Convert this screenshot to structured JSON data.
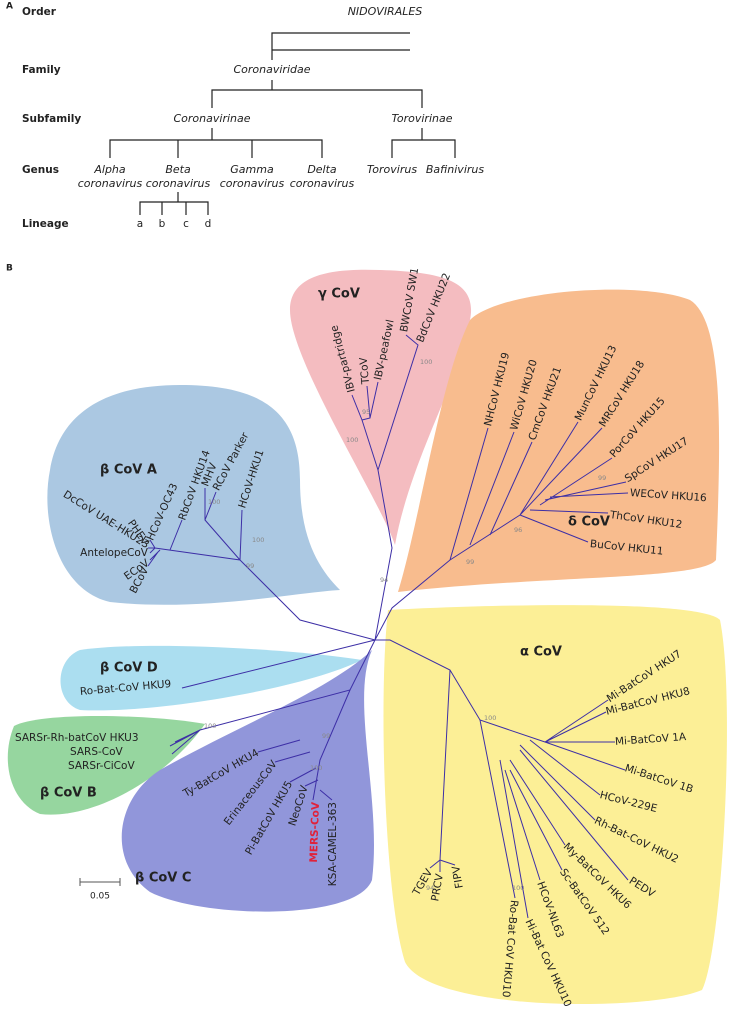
{
  "panel_a": {
    "label": "A",
    "ranks": [
      "Order",
      "Family",
      "Subfamily",
      "Genus",
      "Lineage"
    ],
    "order": "NIDOVIRALES",
    "family": "Coronaviridae",
    "subfamilies": [
      "Coronavirinae",
      "Torovirinae"
    ],
    "genera": [
      [
        "Alpha",
        "coronavirus"
      ],
      [
        "Beta",
        "coronavirus"
      ],
      [
        "Gamma",
        "coronavirus"
      ],
      [
        "Delta",
        "coronavirus"
      ],
      [
        "Torovirus"
      ],
      [
        "Bafinivirus"
      ]
    ],
    "lineages": [
      "a",
      "b",
      "c",
      "d"
    ]
  },
  "panel_b": {
    "label": "B",
    "groups": [
      {
        "name": "γ CoV",
        "taxa": [
          "IBV-partridge",
          "TCoV",
          "IBV-peafowl",
          "BWCoV SW1",
          "BdCoV HKU22"
        ]
      },
      {
        "name": "δ CoV",
        "taxa": [
          "NHCoV HKU19",
          "WiCoV HKU20",
          "CmCoV HKU21",
          "MunCoV HKU13",
          "MRCoV HKU18",
          "PorCoV HKU15",
          "SpCoV HKU17",
          "WECoV HKU16",
          "ThCoV HKU12",
          "BuCoV HKU11"
        ]
      },
      {
        "name": "β CoV A",
        "taxa": [
          "DcCoV UAE-HKU23",
          "PHEV",
          "HCoV-OC43",
          "RbCoV HKU14",
          "MHV",
          "RCoV Parker",
          "HCoV-HKU1",
          "AntelopeCoV",
          "ECoV",
          "BCoV"
        ]
      },
      {
        "name": "β CoV D",
        "taxa": [
          "Ro-Bat-CoV HKU9"
        ]
      },
      {
        "name": "β CoV B",
        "taxa": [
          "SARSr-Rh-batCoV HKU3",
          "SARS-CoV",
          "SARSr-CiCoV"
        ]
      },
      {
        "name": "β CoV C",
        "taxa": [
          "Ty-BatCoV HKU4",
          "ErinaceousCoV",
          "Pi-BatCoV HKU5",
          "NeoCoV",
          "MERS-CoV",
          "KSA-CAMEL-363"
        ]
      },
      {
        "name": "α CoV",
        "taxa": [
          "Mi-BatCoV HKU7",
          "Mi-BatCoV HKU8",
          "Mi-BatCoV 1A",
          "Mi-BatCoV 1B",
          "HCoV-229E",
          "Rh-Bat-CoV HKU2",
          "PEDV",
          "My-BatCoV HKU6",
          "Sc-BatCoV 512",
          "HCoV-NL63",
          "Hi-Bat CoV HKU10",
          "Ro-Bat CoV HKU10",
          "TGEV",
          "PRCV",
          "FIPV"
        ]
      }
    ],
    "bootstrap": [
      100,
      95,
      94,
      100,
      99,
      96,
      99,
      99,
      100,
      100,
      100,
      99,
      100,
      100,
      100,
      94
    ],
    "scale": "0.05"
  }
}
